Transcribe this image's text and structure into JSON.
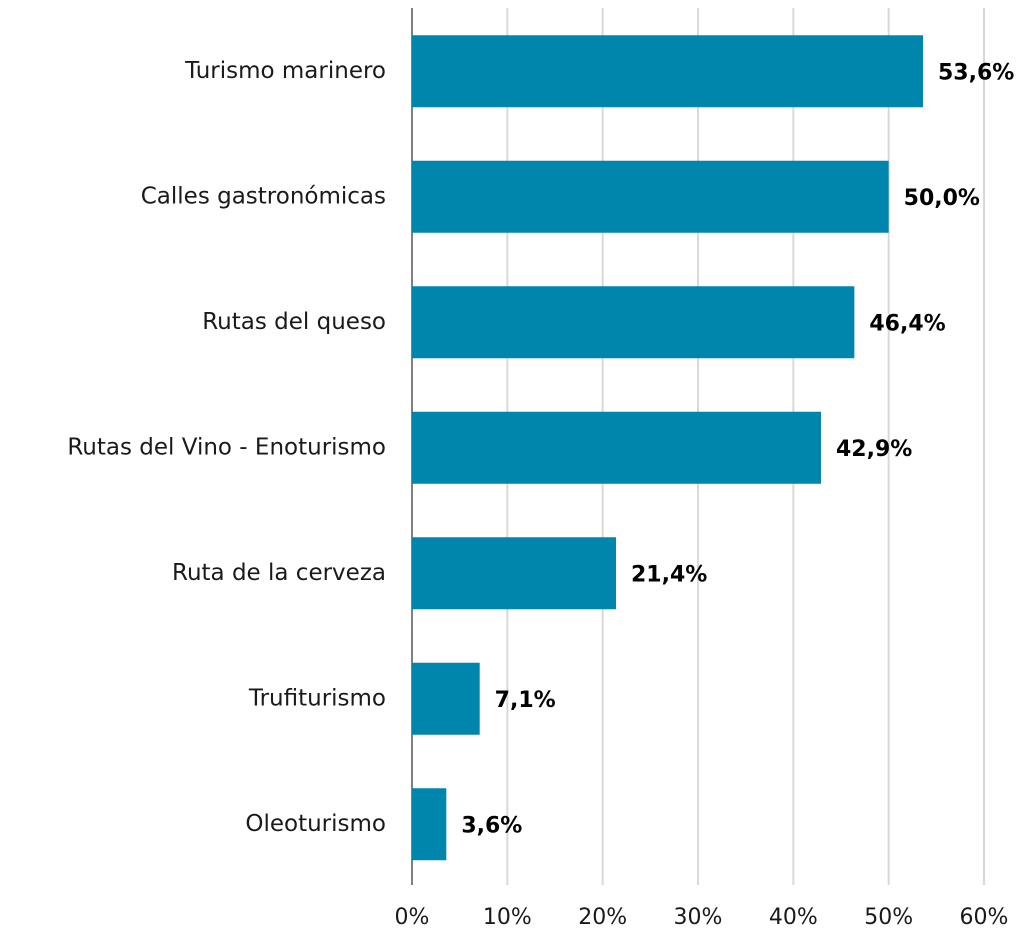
{
  "chart_data": {
    "type": "bar",
    "orientation": "horizontal",
    "categories": [
      "Turismo marinero",
      "Calles gastronómicas",
      "Rutas del queso",
      "Rutas del Vino - Enoturismo",
      "Ruta de la cerveza",
      "Trufiturismo",
      "Oleoturismo"
    ],
    "values": [
      53.6,
      50.0,
      46.4,
      42.9,
      21.4,
      7.1,
      3.6
    ],
    "value_labels": [
      "53,6%",
      "50,0%",
      "46,4%",
      "42,9%",
      "21,4%",
      "7,1%",
      "3,6%"
    ],
    "color": "#0085ad",
    "xlim": [
      0,
      60
    ],
    "xticks": [
      {
        "value": 0,
        "label": "0%"
      },
      {
        "value": 10,
        "label": "10%"
      },
      {
        "value": 20,
        "label": "20%"
      },
      {
        "value": 30,
        "label": "30%"
      },
      {
        "value": 40,
        "label": "40%"
      },
      {
        "value": 50,
        "label": "50%"
      },
      {
        "value": 60,
        "label": "60%"
      }
    ],
    "grid": true
  }
}
